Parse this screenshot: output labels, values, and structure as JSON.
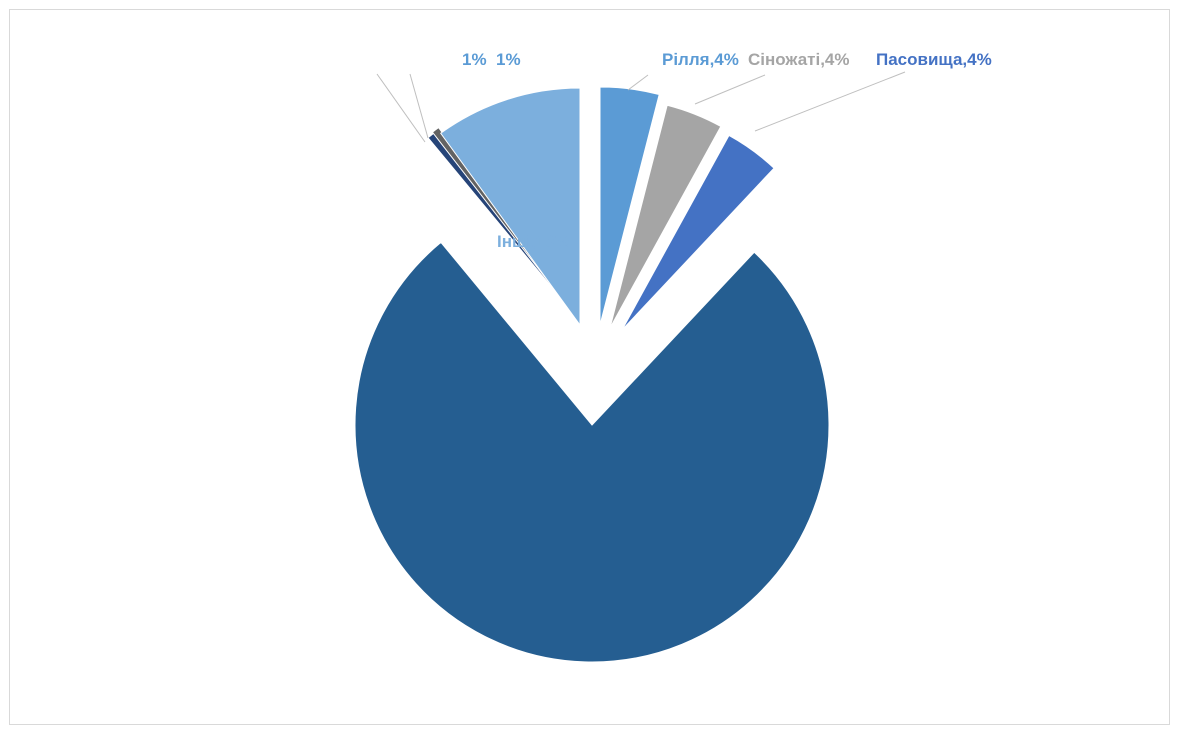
{
  "chart_data": {
    "type": "pie",
    "title": "",
    "exploded": true,
    "slices": [
      {
        "label": "Рілля",
        "value": 4,
        "display": "Рілля,4%",
        "color": "#5b9bd5"
      },
      {
        "label": "Сіножаті",
        "value": 4,
        "display": "Сіножаті,4%",
        "color": "#a5a5a5"
      },
      {
        "label": "Пасовища",
        "value": 4,
        "display": "Пасовища,4%",
        "color": "#4472c4"
      },
      {
        "label": "",
        "value": 77,
        "display": "",
        "color": "#255e91"
      },
      {
        "label": "",
        "value": 0.5,
        "display": "1%",
        "color": "#264478"
      },
      {
        "label": "",
        "value": 0.5,
        "display": "1%",
        "color": "#636363"
      },
      {
        "label": "Інші",
        "value": 10,
        "display": "Інші,10%",
        "color": "#7cafdd"
      }
    ]
  }
}
